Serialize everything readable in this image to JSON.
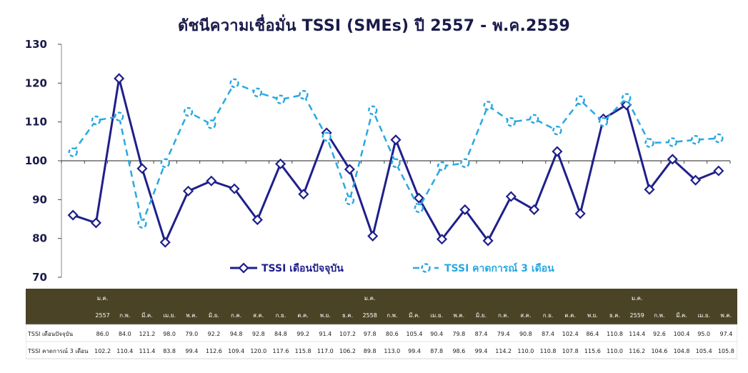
{
  "chart_data": {
    "type": "line",
    "title": "ดัชนีความเชื่อมั่น TSSI (SMEs) ปี 2557 - พ.ค.2559",
    "ylim": [
      70,
      130
    ],
    "yticks": [
      70,
      80,
      90,
      100,
      110,
      120,
      130
    ],
    "grid": false,
    "legend_placement": "bottom",
    "year_labels": [
      {
        "index": 0,
        "month": "ม.ค.",
        "year": "2557"
      },
      {
        "index": 12,
        "month": "ม.ค.",
        "year": "2558"
      },
      {
        "index": 24,
        "month": "ม.ค.",
        "year": "2559"
      }
    ],
    "categories": [
      "2557",
      "ก.พ.",
      "มี.ค.",
      "เม.ย.",
      "พ.ค.",
      "มิ.ย.",
      "ก.ค.",
      "ส.ค.",
      "ก.ย.",
      "ต.ค.",
      "พ.ย.",
      "ธ.ค.",
      "2558",
      "ก.พ.",
      "มี.ค.",
      "เม.ย.",
      "พ.ค.",
      "มิ.ย.",
      "ก.ค.",
      "ส.ค.",
      "ก.ย.",
      "ต.ค.",
      "พ.ย.",
      "ธ.ค.",
      "2559",
      "ก.พ.",
      "มี.ค.",
      "เม.ย.",
      "พ.ค."
    ],
    "series": [
      {
        "name": "TSSI เดือนปัจจุบัน",
        "table_label": "TSSI เดือนปัจจุบัน",
        "color": "#1f1f8c",
        "style": "solid",
        "values": [
          86.0,
          84.0,
          121.2,
          98.0,
          79.0,
          92.2,
          94.8,
          92.8,
          84.8,
          99.2,
          91.4,
          107.2,
          97.8,
          80.6,
          105.4,
          90.4,
          79.8,
          87.4,
          79.4,
          90.8,
          87.4,
          102.4,
          86.4,
          110.8,
          114.4,
          92.6,
          100.4,
          95.0,
          97.4
        ],
        "value_labels": [
          "86.0",
          "84.0",
          "121.2",
          "98.0",
          "79.0",
          "92.2",
          "94.8",
          "92.8",
          "84.8",
          "99.2",
          "91.4",
          "107.2",
          "97.8",
          "80.6",
          "105.4",
          "90.4",
          "79.8",
          "87.4",
          "79.4",
          "90.8",
          "87.4",
          "102.4",
          "86.4",
          "110.8",
          "114.4",
          "92.6",
          "100.4",
          "95.0",
          "97.4"
        ]
      },
      {
        "name": "TSSI คาดการณ์  3 เดือน",
        "table_label": "TSSI คาดการณ์  3 เดือน",
        "color": "#29a8e0",
        "style": "dashed",
        "values": [
          102.2,
          110.4,
          111.4,
          83.8,
          99.4,
          112.6,
          109.4,
          120.0,
          117.6,
          115.8,
          117.0,
          106.2,
          89.8,
          113.0,
          99.4,
          87.8,
          98.6,
          99.4,
          114.2,
          110.0,
          110.8,
          107.8,
          115.6,
          110.0,
          116.2,
          104.6,
          104.8,
          105.4,
          105.8
        ],
        "value_labels": [
          "102.2",
          "110.4",
          "111.4",
          "83.8",
          "99.4",
          "112.6",
          "109.4",
          "120.0",
          "117.6",
          "115.8",
          "117.0",
          "106.2",
          "89.8",
          "113.0",
          "99.4",
          "87.8",
          "98.6",
          "99.4",
          "114.2",
          "110.0",
          "110.8",
          "107.8",
          "115.6",
          "110.0",
          "116.2",
          "104.6",
          "104.8",
          "105.4",
          "105.8"
        ]
      }
    ]
  },
  "colors": {
    "title": "#1a1a4a",
    "axis": "#1a1a4a",
    "table_header_bg": "#4a4326",
    "table_header_text": "#ffffff",
    "table_body_text": "#1a1a1a"
  }
}
